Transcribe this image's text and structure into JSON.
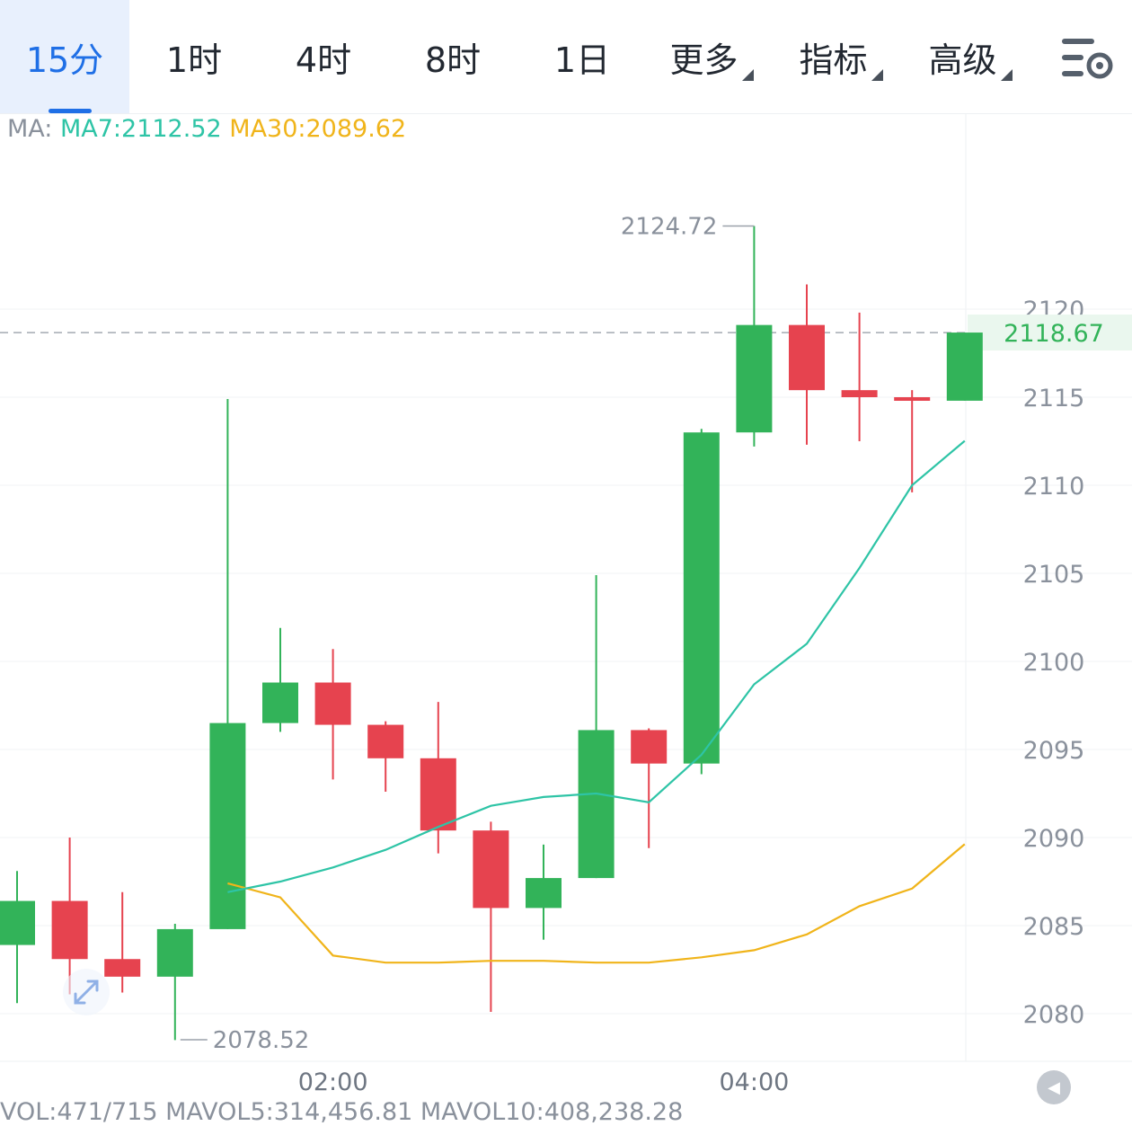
{
  "tabs": [
    {
      "label": "15分",
      "active": true
    },
    {
      "label": "1时",
      "active": false
    },
    {
      "label": "4时",
      "active": false
    },
    {
      "label": "8时",
      "active": false
    },
    {
      "label": "1日",
      "active": false
    },
    {
      "label": "更多",
      "active": false,
      "dropdown": true
    },
    {
      "label": "指标",
      "active": false,
      "dropdown": true
    },
    {
      "label": "高级",
      "active": false,
      "dropdown": true
    }
  ],
  "settings_icon": "chart-settings-icon",
  "ma": {
    "label": "MA:",
    "ma7": "MA7:2112.52",
    "ma30": "MA30:2089.62"
  },
  "vol_text": "VOL:471/715 MAVOL5:314,456.81 MAVOL10:408,238.28",
  "nav_icon": "jump-to-latest-icon",
  "colors": {
    "up": "#32b359",
    "down": "#e6434f",
    "ma7": "#2ec4a6",
    "ma30": "#f0b41a",
    "accent": "#1f6fe6"
  },
  "chart_data": {
    "type": "candlestick",
    "interval": "15分",
    "y_ticks": [
      2080,
      2085,
      2090,
      2095,
      2100,
      2105,
      2110,
      2115,
      2120
    ],
    "y_tick_labels": [
      "2080",
      "2085",
      "2090",
      "2095",
      "2100",
      "2105",
      "2110",
      "2115",
      "2120"
    ],
    "x_ticks": [
      {
        "index": 6,
        "label": "02:00"
      },
      {
        "index": 14,
        "label": "04:00"
      }
    ],
    "last_price": 2118.67,
    "last_price_label": "2118.67",
    "high_marker": {
      "index": 14,
      "label": "2124.72",
      "value": 2124.72
    },
    "low_marker": {
      "index": 3,
      "label": "2078.52",
      "value": 2078.52
    },
    "candles": [
      {
        "o": 2083.9,
        "h": 2088.1,
        "l": 2080.6,
        "c": 2086.4
      },
      {
        "o": 2086.4,
        "h": 2090.0,
        "l": 2081.1,
        "c": 2083.1
      },
      {
        "o": 2083.1,
        "h": 2086.9,
        "l": 2081.2,
        "c": 2082.1
      },
      {
        "o": 2082.1,
        "h": 2085.1,
        "l": 2078.5,
        "c": 2084.8
      },
      {
        "o": 2084.8,
        "h": 2114.9,
        "l": 2084.8,
        "c": 2096.5
      },
      {
        "o": 2096.5,
        "h": 2101.9,
        "l": 2096.0,
        "c": 2098.8
      },
      {
        "o": 2098.8,
        "h": 2100.7,
        "l": 2093.3,
        "c": 2096.4
      },
      {
        "o": 2096.4,
        "h": 2096.6,
        "l": 2092.6,
        "c": 2094.5
      },
      {
        "o": 2094.5,
        "h": 2097.7,
        "l": 2089.1,
        "c": 2090.4
      },
      {
        "o": 2090.4,
        "h": 2090.9,
        "l": 2080.1,
        "c": 2086.0
      },
      {
        "o": 2086.0,
        "h": 2089.6,
        "l": 2084.2,
        "c": 2087.7
      },
      {
        "o": 2087.7,
        "h": 2104.9,
        "l": 2087.7,
        "c": 2096.1
      },
      {
        "o": 2096.1,
        "h": 2096.2,
        "l": 2089.4,
        "c": 2094.2
      },
      {
        "o": 2094.2,
        "h": 2113.2,
        "l": 2093.6,
        "c": 2113.0
      },
      {
        "o": 2113.0,
        "h": 2124.72,
        "l": 2112.2,
        "c": 2119.1
      },
      {
        "o": 2119.1,
        "h": 2121.4,
        "l": 2112.3,
        "c": 2115.4
      },
      {
        "o": 2115.4,
        "h": 2119.8,
        "l": 2112.5,
        "c": 2115.0
      },
      {
        "o": 2115.0,
        "h": 2115.4,
        "l": 2109.6,
        "c": 2114.8
      },
      {
        "o": 2114.8,
        "h": 2118.67,
        "l": 2114.8,
        "c": 2118.67
      }
    ],
    "ma7_values": [
      null,
      null,
      null,
      null,
      2086.9,
      2087.5,
      2088.3,
      2089.3,
      2090.6,
      2091.8,
      2092.3,
      2092.5,
      2092.0,
      2094.7,
      2098.7,
      2101.0,
      2105.3,
      2110.0,
      2112.52
    ],
    "ma30_values": [
      null,
      null,
      null,
      null,
      2087.4,
      2086.6,
      2083.3,
      2082.9,
      2082.9,
      2083.0,
      2083.0,
      2082.9,
      2082.9,
      2083.2,
      2083.6,
      2084.5,
      2086.1,
      2087.1,
      2089.62
    ],
    "ma7_label": "MA7:2112.52",
    "ma30_label": "MA30:2089.62"
  }
}
